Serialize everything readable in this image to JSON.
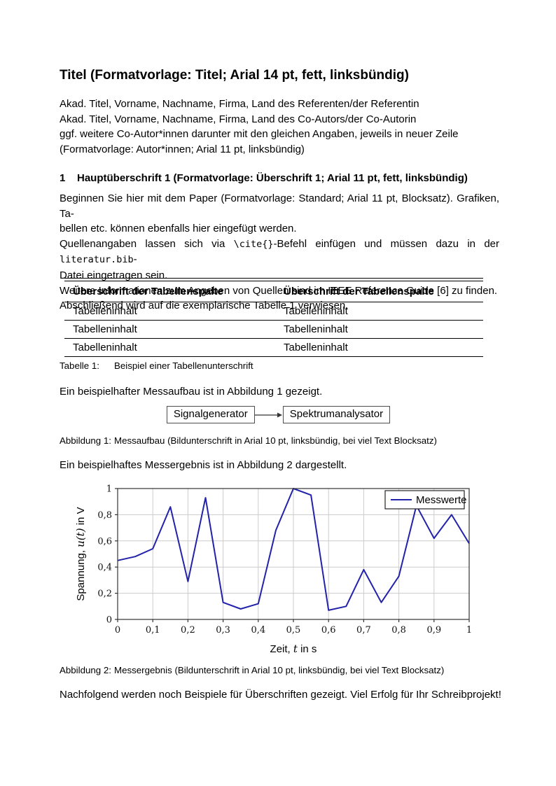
{
  "doc": {
    "title": "Titel (Formatvorlage: Titel; Arial 14 pt, fett, linksbündig)",
    "authors": [
      "Akad. Titel, Vorname, Nachname, Firma, Land des Referenten/der Referentin",
      "Akad. Titel, Vorname, Nachname, Firma, Land des Co-Autors/der Co-Autorin",
      "ggf. weitere Co-Autor*innen darunter mit den gleichen Angaben, jeweils in neuer Zeile",
      "(Formatvorlage: Autor*innen; Arial 11 pt, linksbündig)"
    ],
    "heading": {
      "number": "1",
      "text": "Hauptüberschrift 1 (Formatvorlage: Überschrift 1; Arial 11 pt, fett, linksbündig)"
    },
    "paragraph": {
      "lines": [
        {
          "j": true,
          "runs": [
            {
              "t": "Beginnen Sie hier mit dem Paper (Formatvorlage: Standard; Arial 11 pt, Blocksatz). Grafiken, Ta-"
            }
          ]
        },
        {
          "j": false,
          "runs": [
            {
              "t": "bellen etc. können ebenfalls hier eingefügt werden."
            }
          ]
        },
        {
          "j": true,
          "runs": [
            {
              "t": "Quellenangaben lassen sich via "
            },
            {
              "t": "\\cite{}",
              "mono": true
            },
            {
              "t": "-Befehl einfügen und müssen dazu in der "
            },
            {
              "t": "literatur.bib",
              "mono": true
            },
            {
              "t": "-"
            }
          ]
        },
        {
          "j": false,
          "runs": [
            {
              "t": "Datei eingetragen sein."
            }
          ]
        },
        {
          "j": false,
          "runs": [
            {
              "t": "Weitere Informationen zum Angeben von Quellen sind im IEEE Reference Guide [6] zu finden."
            }
          ]
        },
        {
          "j": false,
          "runs": [
            {
              "t": "Abschließend wird auf die exemplarische Tabelle 1 verwiesen."
            }
          ]
        }
      ]
    },
    "sentence_fig1": "Ein beispielhafter Messaufbau ist in Abbildung 1 gezeigt.",
    "sentence_fig2": "Ein beispielhaftes Messergebnis ist in Abbildung 2 dargestellt.",
    "closing": "Nachfolgend werden noch Beispiele für Überschriften gezeigt. Viel Erfolg für Ihr Schreibprojekt!"
  },
  "table": {
    "headers": [
      "Überschrift der Tabellenspalte",
      "Überschrift der Tabellenspalte"
    ],
    "rows": [
      [
        "Tabelleninhalt",
        "Tabelleninhalt"
      ],
      [
        "Tabelleninhalt",
        "Tabelleninhalt"
      ],
      [
        "Tabelleninhalt",
        "Tabelleninhalt"
      ]
    ],
    "caption_label": "Tabelle 1:",
    "caption_text": "Beispiel einer Tabellenunterschrift"
  },
  "figure1": {
    "box1": "Signalgenerator",
    "box2": "Spektrumanalysator",
    "caption_label": "Abbildung 1:",
    "caption_text": "Messaufbau (Bildunterschrift in Arial 10 pt, linksbündig, bei viel Text Blocksatz)"
  },
  "figure2": {
    "caption_label": "Abbildung 2:",
    "caption_text": "Messergebnis (Bildunterschrift in Arial 10 pt, linksbündig, bei viel Text Blocksatz)"
  },
  "chart_data": {
    "type": "line",
    "title": "",
    "xlabel": "Zeit, t in s",
    "ylabel": "Spannung, u(t) in V",
    "xlabel_parts": [
      {
        "t": "Zeit, "
      },
      {
        "t": "t",
        "italic": true
      },
      {
        "t": " in s"
      }
    ],
    "ylabel_parts": [
      {
        "t": "Spannung, "
      },
      {
        "t": "u(t)",
        "italic": true
      },
      {
        "t": " in V"
      }
    ],
    "xlim": [
      0,
      1
    ],
    "ylim": [
      0,
      1
    ],
    "xticks": [
      0,
      0.1,
      0.2,
      0.3,
      0.4,
      0.5,
      0.6,
      0.7,
      0.8,
      0.9,
      1
    ],
    "xtick_labels": [
      "0",
      "0,1",
      "0,2",
      "0,3",
      "0,4",
      "0,5",
      "0,6",
      "0,7",
      "0,8",
      "0,9",
      "1"
    ],
    "yticks": [
      0,
      0.2,
      0.4,
      0.6,
      0.8,
      1
    ],
    "ytick_labels": [
      "0",
      "0,2",
      "0,4",
      "0,6",
      "0,8",
      "1"
    ],
    "grid": true,
    "legend_position": "top-right",
    "line_color": "#2222aa",
    "grid_color": "#cccccc",
    "axis_color": "#333333",
    "series": [
      {
        "name": "Messwerte",
        "x": [
          0,
          0.05,
          0.1,
          0.15,
          0.2,
          0.25,
          0.3,
          0.35,
          0.4,
          0.45,
          0.5,
          0.55,
          0.6,
          0.65,
          0.7,
          0.75,
          0.8,
          0.85,
          0.9,
          0.95,
          1
        ],
        "y": [
          0.45,
          0.48,
          0.54,
          0.86,
          0.29,
          0.93,
          0.13,
          0.08,
          0.12,
          0.68,
          1.0,
          0.95,
          0.07,
          0.1,
          0.38,
          0.13,
          0.33,
          0.87,
          0.62,
          0.8,
          0.58
        ]
      }
    ]
  }
}
